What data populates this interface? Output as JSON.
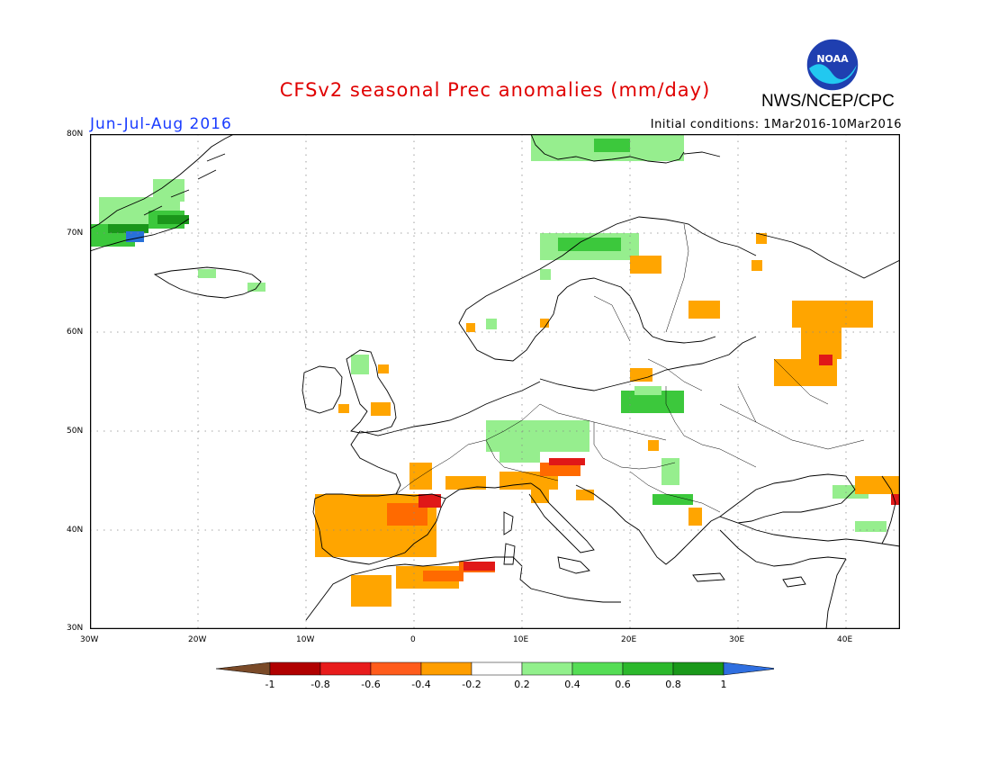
{
  "header": {
    "title": "CFSv2 seasonal Prec anomalies (mm/day)",
    "period": "Jun-Jul-Aug 2016",
    "initial_conditions": "Initial conditions: 1Mar2016-10Mar2016",
    "agency": "NWS/NCEP/CPC",
    "logo_text": "NOAA"
  },
  "map": {
    "lat_labels": [
      "80N",
      "70N",
      "60N",
      "50N",
      "40N",
      "30N"
    ],
    "lon_labels": [
      "30W",
      "20W",
      "10W",
      "0",
      "10E",
      "20E",
      "30E",
      "40E"
    ],
    "lon_range": [
      -30,
      45
    ],
    "lat_range": [
      30,
      80
    ],
    "grid": true
  },
  "colorbar": {
    "labels": [
      "-1",
      "-0.8",
      "-0.6",
      "-0.4",
      "-0.2",
      "0.2",
      "0.4",
      "0.6",
      "0.8",
      "1"
    ],
    "colors": [
      "#7a4a28",
      "#b00000",
      "#e81c1c",
      "#ff5c1c",
      "#ff9e00",
      "#ffffff",
      "#92f08c",
      "#55dd55",
      "#2cb82c",
      "#1a981a",
      "#2f6fe0"
    ]
  },
  "colors": {
    "dry_light": "#ffa500",
    "dry_mid": "#ff6a00",
    "dry_strong": "#e01818",
    "wet_light": "#96ee8e",
    "wet_mid": "#3cc83c",
    "wet_strong": "#1a961a",
    "wet_extreme": "#2870d8",
    "coast": "#000000",
    "title": "#e00000",
    "period": "#1a3cff"
  }
}
